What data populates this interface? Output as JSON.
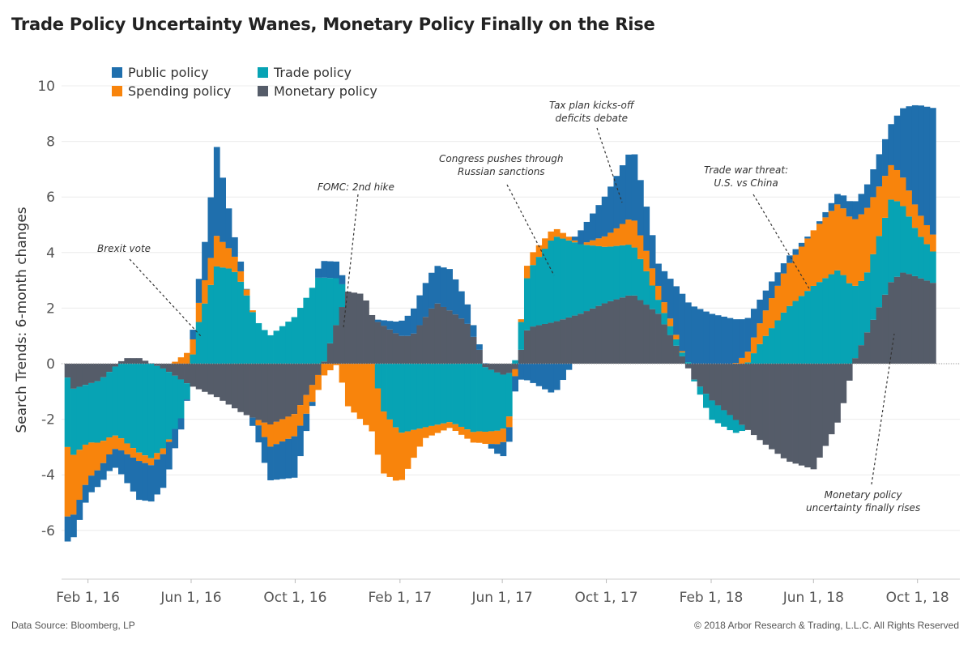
{
  "title": "Trade Policy Uncertainty Wanes, Monetary Policy Finally on the Rise",
  "footer": {
    "source": "Data Source: Bloomberg, LP",
    "copyright": "© 2018 Arbor Research & Trading, L.L.C. All Rights Reserved"
  },
  "legend": {
    "public": "Public policy",
    "trade": "Trade policy",
    "spending": "Spending policy",
    "monetary": "Monetary policy"
  },
  "colors": {
    "public": "#1f6fad",
    "trade": "#07a3b4",
    "spending": "#f8840c",
    "monetary": "#555c69"
  },
  "annotations": {
    "brexit": "Brexit vote",
    "fomc": "FOMC: 2nd hike",
    "congress_1": "Congress pushes through",
    "congress_2": "Russian sanctions",
    "tax_1": "Tax plan kicks-off",
    "tax_2": "deficits debate",
    "trade_war_1": "Trade war threat:",
    "trade_war_2": "U.S. vs China",
    "monetary_1": "Monetary policy",
    "monetary_2": "uncertainty finally rises"
  },
  "chart_data": {
    "type": "bar",
    "stacked": true,
    "title": "Trade Policy Uncertainty Wanes, Monetary Policy Finally on the Rise",
    "xlabel": "",
    "ylabel": "Search Trends: 6-month changes",
    "x_start": "2016-01-01",
    "x_end": "2018-10-31",
    "x_ticks": [
      "Feb 1, 16",
      "Jun 1, 16",
      "Oct 1, 16",
      "Feb 1, 17",
      "Jun 1, 17",
      "Oct 1, 17",
      "Feb 1, 18",
      "Jun 1, 18",
      "Oct 1, 18"
    ],
    "ylim": [
      -7.5,
      11.5
    ],
    "y_ticks": [
      -6,
      -4,
      -2,
      0,
      2,
      4,
      6,
      8,
      10
    ],
    "grid": true,
    "legend_position": "top-left",
    "note": "Weekly stacked bars. Each series value gives the segment size; positive values stack upward from zero, negative values stack downward.",
    "anchors": {
      "monetary": [
        [
          "2016-01-01",
          -0.1
        ],
        [
          "2016-01-15",
          -0.9
        ],
        [
          "2016-02-15",
          -0.6
        ],
        [
          "2016-03-15",
          0.2
        ],
        [
          "2016-04-01",
          0.2
        ],
        [
          "2016-05-01",
          -0.2
        ],
        [
          "2016-06-01",
          -0.8
        ],
        [
          "2016-07-01",
          -1.2
        ],
        [
          "2016-08-01",
          -1.8
        ],
        [
          "2016-09-01",
          -2.2
        ],
        [
          "2016-10-01",
          -1.8
        ],
        [
          "2016-11-01",
          -0.2
        ],
        [
          "2016-12-01",
          2.6
        ],
        [
          "2016-12-20",
          2.5
        ],
        [
          "2017-01-01",
          1.6
        ],
        [
          "2017-02-01",
          1.0
        ],
        [
          "2017-02-15",
          1.0
        ],
        [
          "2017-03-01",
          1.6
        ],
        [
          "2017-03-15",
          2.2
        ],
        [
          "2017-04-01",
          1.9
        ],
        [
          "2017-04-20",
          1.5
        ],
        [
          "2017-05-05",
          0.5
        ],
        [
          "2017-05-10",
          -0.1
        ],
        [
          "2017-06-01",
          -0.4
        ],
        [
          "2017-06-15",
          -0.3
        ],
        [
          "2017-07-01",
          1.3
        ],
        [
          "2017-08-01",
          1.5
        ],
        [
          "2017-09-01",
          1.8
        ],
        [
          "2017-10-01",
          2.2
        ],
        [
          "2017-11-01",
          2.5
        ],
        [
          "2017-12-01",
          1.8
        ],
        [
          "2018-01-01",
          0.1
        ],
        [
          "2018-01-10",
          -0.5
        ],
        [
          "2018-02-01",
          -1.3
        ],
        [
          "2018-03-01",
          -2.0
        ],
        [
          "2018-04-01",
          -2.8
        ],
        [
          "2018-05-01",
          -3.5
        ],
        [
          "2018-06-01",
          -3.8
        ],
        [
          "2018-07-01",
          -2.0
        ],
        [
          "2018-07-20",
          0.2
        ],
        [
          "2018-08-01",
          1.0
        ],
        [
          "2018-09-01",
          3.0
        ],
        [
          "2018-09-15",
          3.3
        ],
        [
          "2018-10-20",
          2.9
        ]
      ],
      "trade": [
        [
          "2016-01-01",
          0
        ],
        [
          "2016-01-08",
          -2.5
        ],
        [
          "2016-02-01",
          -2.1
        ],
        [
          "2016-03-01",
          -2.4
        ],
        [
          "2016-03-15",
          -2.8
        ],
        [
          "2016-04-01",
          -3.2
        ],
        [
          "2016-04-15",
          -3.4
        ],
        [
          "2016-05-01",
          -2.8
        ],
        [
          "2016-05-20",
          -1.4
        ],
        [
          "2016-06-01",
          0
        ],
        [
          "2016-06-10",
          1.5
        ],
        [
          "2016-07-01",
          3.5
        ],
        [
          "2016-07-20",
          3.4
        ],
        [
          "2016-08-01",
          2.8
        ],
        [
          "2016-08-15",
          1.6
        ],
        [
          "2016-09-01",
          1.0
        ],
        [
          "2016-10-01",
          1.7
        ],
        [
          "2016-11-01",
          3.3
        ],
        [
          "2016-11-20",
          1.5
        ],
        [
          "2016-12-01",
          0
        ],
        [
          "2017-01-01",
          0
        ],
        [
          "2017-01-10",
          -1.6
        ],
        [
          "2017-02-01",
          -2.5
        ],
        [
          "2017-03-01",
          -2.3
        ],
        [
          "2017-04-01",
          -2.1
        ],
        [
          "2017-05-01",
          -2.5
        ],
        [
          "2017-06-01",
          -2.0
        ],
        [
          "2017-06-10",
          -1.5
        ],
        [
          "2017-06-15",
          0
        ],
        [
          "2017-07-01",
          2.0
        ],
        [
          "2017-08-01",
          3.1
        ],
        [
          "2017-09-01",
          2.5
        ],
        [
          "2017-10-01",
          2.0
        ],
        [
          "2017-11-01",
          1.8
        ],
        [
          "2017-11-15",
          1.3
        ],
        [
          "2017-12-01",
          0.5
        ],
        [
          "2018-01-01",
          0.1
        ],
        [
          "2018-01-10",
          0
        ],
        [
          "2018-02-01",
          -0.7
        ],
        [
          "2018-03-01",
          -0.5
        ],
        [
          "2018-03-15",
          0
        ],
        [
          "2018-04-01",
          0.8
        ],
        [
          "2018-05-01",
          2.0
        ],
        [
          "2018-06-01",
          2.8
        ],
        [
          "2018-07-01",
          3.4
        ],
        [
          "2018-08-01",
          2.1
        ],
        [
          "2018-09-01",
          3.0
        ],
        [
          "2018-10-01",
          1.6
        ],
        [
          "2018-10-20",
          1.1
        ]
      ],
      "spending": [
        [
          "2016-01-01",
          0
        ],
        [
          "2016-01-08",
          -2.5
        ],
        [
          "2016-02-01",
          -1.3
        ],
        [
          "2016-03-01",
          -0.5
        ],
        [
          "2016-04-01",
          -0.3
        ],
        [
          "2016-05-01",
          -0.2
        ],
        [
          "2016-06-01",
          0.5
        ],
        [
          "2016-06-20",
          0.9
        ],
        [
          "2016-07-01",
          1.1
        ],
        [
          "2016-07-20",
          0.6
        ],
        [
          "2016-08-01",
          0.3
        ],
        [
          "2016-08-15",
          0
        ],
        [
          "2016-09-01",
          -0.8
        ],
        [
          "2016-10-01",
          -0.8
        ],
        [
          "2016-11-01",
          -0.5
        ],
        [
          "2016-11-20",
          0
        ],
        [
          "2016-12-01",
          -1.5
        ],
        [
          "2017-01-01",
          -2.5
        ],
        [
          "2017-02-01",
          -1.8
        ],
        [
          "2017-03-01",
          -0.4
        ],
        [
          "2017-04-01",
          -0.2
        ],
        [
          "2017-05-01",
          -0.4
        ],
        [
          "2017-06-01",
          -0.5
        ],
        [
          "2017-06-15",
          -0.3
        ],
        [
          "2017-07-01",
          0.5
        ],
        [
          "2017-08-01",
          0.3
        ],
        [
          "2017-09-01",
          0
        ],
        [
          "2017-10-01",
          0.4
        ],
        [
          "2017-11-01",
          1.0
        ],
        [
          "2017-12-01",
          0.5
        ],
        [
          "2018-01-01",
          0
        ],
        [
          "2018-03-01",
          0
        ],
        [
          "2018-04-01",
          0.8
        ],
        [
          "2018-05-01",
          1.5
        ],
        [
          "2018-06-01",
          2.0
        ],
        [
          "2018-07-01",
          2.4
        ],
        [
          "2018-08-01",
          2.4
        ],
        [
          "2018-09-01",
          1.2
        ],
        [
          "2018-10-01",
          0.8
        ],
        [
          "2018-10-20",
          0.6
        ]
      ],
      "public": [
        [
          "2016-01-01",
          0
        ],
        [
          "2016-01-08",
          -0.9
        ],
        [
          "2016-02-01",
          -0.6
        ],
        [
          "2016-03-01",
          -0.6
        ],
        [
          "2016-04-01",
          -1.4
        ],
        [
          "2016-05-01",
          -1.2
        ],
        [
          "2016-05-20",
          -0.4
        ],
        [
          "2016-06-01",
          0.2
        ],
        [
          "2016-06-20",
          1.6
        ],
        [
          "2016-07-01",
          3.2
        ],
        [
          "2016-07-20",
          0.8
        ],
        [
          "2016-08-01",
          0.2
        ],
        [
          "2016-09-01",
          -1.2
        ],
        [
          "2016-10-01",
          -1.5
        ],
        [
          "2016-11-01",
          0.6
        ],
        [
          "2016-11-20",
          0.6
        ],
        [
          "2016-12-01",
          0
        ],
        [
          "2017-01-01",
          0
        ],
        [
          "2017-02-01",
          0.5
        ],
        [
          "2017-03-01",
          1.2
        ],
        [
          "2017-04-01",
          1.5
        ],
        [
          "2017-05-01",
          0.3
        ],
        [
          "2017-06-01",
          -0.5
        ],
        [
          "2017-07-01",
          -0.6
        ],
        [
          "2017-08-01",
          -1.1
        ],
        [
          "2017-09-01",
          0.5
        ],
        [
          "2017-10-01",
          1.5
        ],
        [
          "2017-11-01",
          2.5
        ],
        [
          "2017-12-01",
          0.8
        ],
        [
          "2018-01-01",
          2.2
        ],
        [
          "2018-02-01",
          1.8
        ],
        [
          "2018-03-01",
          1.6
        ],
        [
          "2018-04-01",
          0.8
        ],
        [
          "2018-05-01",
          0.3
        ],
        [
          "2018-06-01",
          0
        ],
        [
          "2018-07-01",
          0.4
        ],
        [
          "2018-08-01",
          0.8
        ],
        [
          "2018-09-01",
          1.5
        ],
        [
          "2018-10-01",
          3.8
        ],
        [
          "2018-10-20",
          4.6
        ]
      ]
    }
  }
}
